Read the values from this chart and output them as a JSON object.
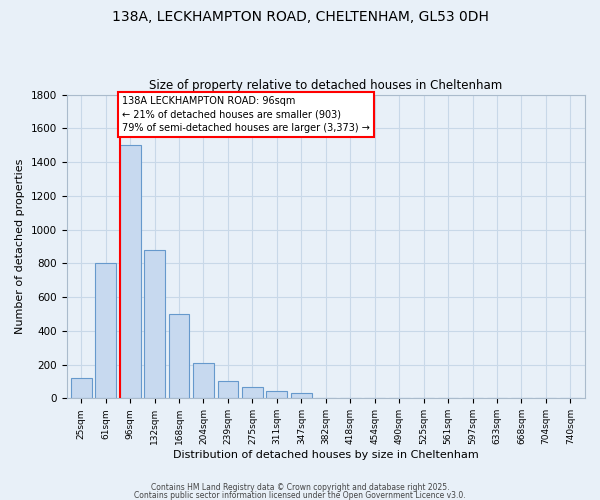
{
  "title_line1": "138A, LECKHAMPTON ROAD, CHELTENHAM, GL53 0DH",
  "title_line2": "Size of property relative to detached houses in Cheltenham",
  "xlabel": "Distribution of detached houses by size in Cheltenham",
  "ylabel": "Number of detached properties",
  "categories": [
    "25sqm",
    "61sqm",
    "96sqm",
    "132sqm",
    "168sqm",
    "204sqm",
    "239sqm",
    "275sqm",
    "311sqm",
    "347sqm",
    "382sqm",
    "418sqm",
    "454sqm",
    "490sqm",
    "525sqm",
    "561sqm",
    "597sqm",
    "633sqm",
    "668sqm",
    "704sqm",
    "740sqm"
  ],
  "values": [
    120,
    800,
    1500,
    880,
    500,
    210,
    105,
    65,
    45,
    30,
    0,
    0,
    0,
    0,
    0,
    0,
    0,
    0,
    0,
    0,
    0
  ],
  "bar_color": "#c7d9ef",
  "bar_edge_color": "#6699cc",
  "red_line_x": 2,
  "annotation_line1": "138A LECKHAMPTON ROAD: 96sqm",
  "annotation_line2": "← 21% of detached houses are smaller (903)",
  "annotation_line3": "79% of semi-detached houses are larger (3,373) →",
  "annotation_box_color": "white",
  "annotation_box_edge_color": "red",
  "ylim": [
    0,
    1800
  ],
  "yticks": [
    0,
    200,
    400,
    600,
    800,
    1000,
    1200,
    1400,
    1600,
    1800
  ],
  "grid_color": "#c8d8e8",
  "bg_color": "#e8f0f8",
  "footer_line1": "Contains HM Land Registry data © Crown copyright and database right 2025.",
  "footer_line2": "Contains public sector information licensed under the Open Government Licence v3.0."
}
